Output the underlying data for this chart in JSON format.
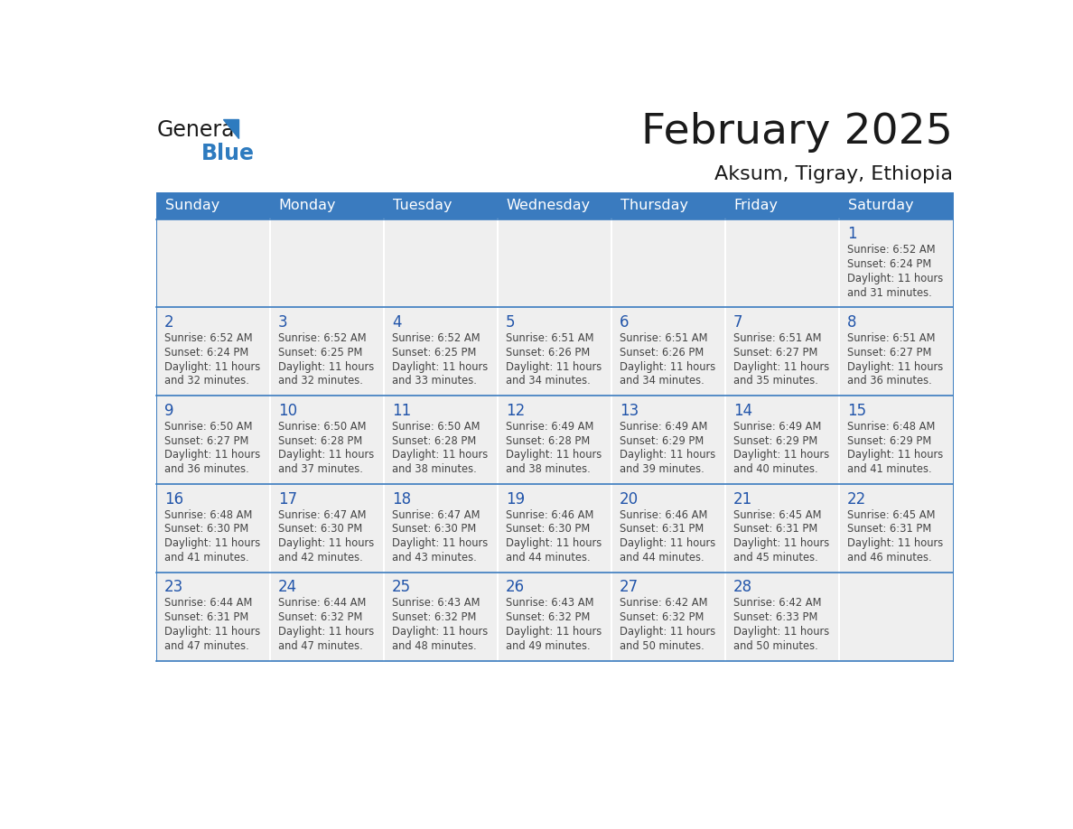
{
  "title": "February 2025",
  "subtitle": "Aksum, Tigray, Ethiopia",
  "days_of_week": [
    "Sunday",
    "Monday",
    "Tuesday",
    "Wednesday",
    "Thursday",
    "Friday",
    "Saturday"
  ],
  "header_bg": "#3a7bbf",
  "header_text_color": "#ffffff",
  "cell_bg": "#efefef",
  "title_color": "#1a1a1a",
  "subtitle_color": "#1a1a1a",
  "day_number_color": "#2255aa",
  "text_color": "#444444",
  "line_color": "#3a7bbf",
  "logo_color_general": "#1a1a1a",
  "logo_color_blue": "#2e7bbf",
  "calendar_data": [
    [
      null,
      null,
      null,
      null,
      null,
      null,
      {
        "day": 1,
        "sunrise": "6:52 AM",
        "sunset": "6:24 PM",
        "daylight": "11 hours and 31 minutes."
      }
    ],
    [
      {
        "day": 2,
        "sunrise": "6:52 AM",
        "sunset": "6:24 PM",
        "daylight": "11 hours and 32 minutes."
      },
      {
        "day": 3,
        "sunrise": "6:52 AM",
        "sunset": "6:25 PM",
        "daylight": "11 hours and 32 minutes."
      },
      {
        "day": 4,
        "sunrise": "6:52 AM",
        "sunset": "6:25 PM",
        "daylight": "11 hours and 33 minutes."
      },
      {
        "day": 5,
        "sunrise": "6:51 AM",
        "sunset": "6:26 PM",
        "daylight": "11 hours and 34 minutes."
      },
      {
        "day": 6,
        "sunrise": "6:51 AM",
        "sunset": "6:26 PM",
        "daylight": "11 hours and 34 minutes."
      },
      {
        "day": 7,
        "sunrise": "6:51 AM",
        "sunset": "6:27 PM",
        "daylight": "11 hours and 35 minutes."
      },
      {
        "day": 8,
        "sunrise": "6:51 AM",
        "sunset": "6:27 PM",
        "daylight": "11 hours and 36 minutes."
      }
    ],
    [
      {
        "day": 9,
        "sunrise": "6:50 AM",
        "sunset": "6:27 PM",
        "daylight": "11 hours and 36 minutes."
      },
      {
        "day": 10,
        "sunrise": "6:50 AM",
        "sunset": "6:28 PM",
        "daylight": "11 hours and 37 minutes."
      },
      {
        "day": 11,
        "sunrise": "6:50 AM",
        "sunset": "6:28 PM",
        "daylight": "11 hours and 38 minutes."
      },
      {
        "day": 12,
        "sunrise": "6:49 AM",
        "sunset": "6:28 PM",
        "daylight": "11 hours and 38 minutes."
      },
      {
        "day": 13,
        "sunrise": "6:49 AM",
        "sunset": "6:29 PM",
        "daylight": "11 hours and 39 minutes."
      },
      {
        "day": 14,
        "sunrise": "6:49 AM",
        "sunset": "6:29 PM",
        "daylight": "11 hours and 40 minutes."
      },
      {
        "day": 15,
        "sunrise": "6:48 AM",
        "sunset": "6:29 PM",
        "daylight": "11 hours and 41 minutes."
      }
    ],
    [
      {
        "day": 16,
        "sunrise": "6:48 AM",
        "sunset": "6:30 PM",
        "daylight": "11 hours and 41 minutes."
      },
      {
        "day": 17,
        "sunrise": "6:47 AM",
        "sunset": "6:30 PM",
        "daylight": "11 hours and 42 minutes."
      },
      {
        "day": 18,
        "sunrise": "6:47 AM",
        "sunset": "6:30 PM",
        "daylight": "11 hours and 43 minutes."
      },
      {
        "day": 19,
        "sunrise": "6:46 AM",
        "sunset": "6:30 PM",
        "daylight": "11 hours and 44 minutes."
      },
      {
        "day": 20,
        "sunrise": "6:46 AM",
        "sunset": "6:31 PM",
        "daylight": "11 hours and 44 minutes."
      },
      {
        "day": 21,
        "sunrise": "6:45 AM",
        "sunset": "6:31 PM",
        "daylight": "11 hours and 45 minutes."
      },
      {
        "day": 22,
        "sunrise": "6:45 AM",
        "sunset": "6:31 PM",
        "daylight": "11 hours and 46 minutes."
      }
    ],
    [
      {
        "day": 23,
        "sunrise": "6:44 AM",
        "sunset": "6:31 PM",
        "daylight": "11 hours and 47 minutes."
      },
      {
        "day": 24,
        "sunrise": "6:44 AM",
        "sunset": "6:32 PM",
        "daylight": "11 hours and 47 minutes."
      },
      {
        "day": 25,
        "sunrise": "6:43 AM",
        "sunset": "6:32 PM",
        "daylight": "11 hours and 48 minutes."
      },
      {
        "day": 26,
        "sunrise": "6:43 AM",
        "sunset": "6:32 PM",
        "daylight": "11 hours and 49 minutes."
      },
      {
        "day": 27,
        "sunrise": "6:42 AM",
        "sunset": "6:32 PM",
        "daylight": "11 hours and 50 minutes."
      },
      {
        "day": 28,
        "sunrise": "6:42 AM",
        "sunset": "6:33 PM",
        "daylight": "11 hours and 50 minutes."
      },
      null
    ]
  ]
}
